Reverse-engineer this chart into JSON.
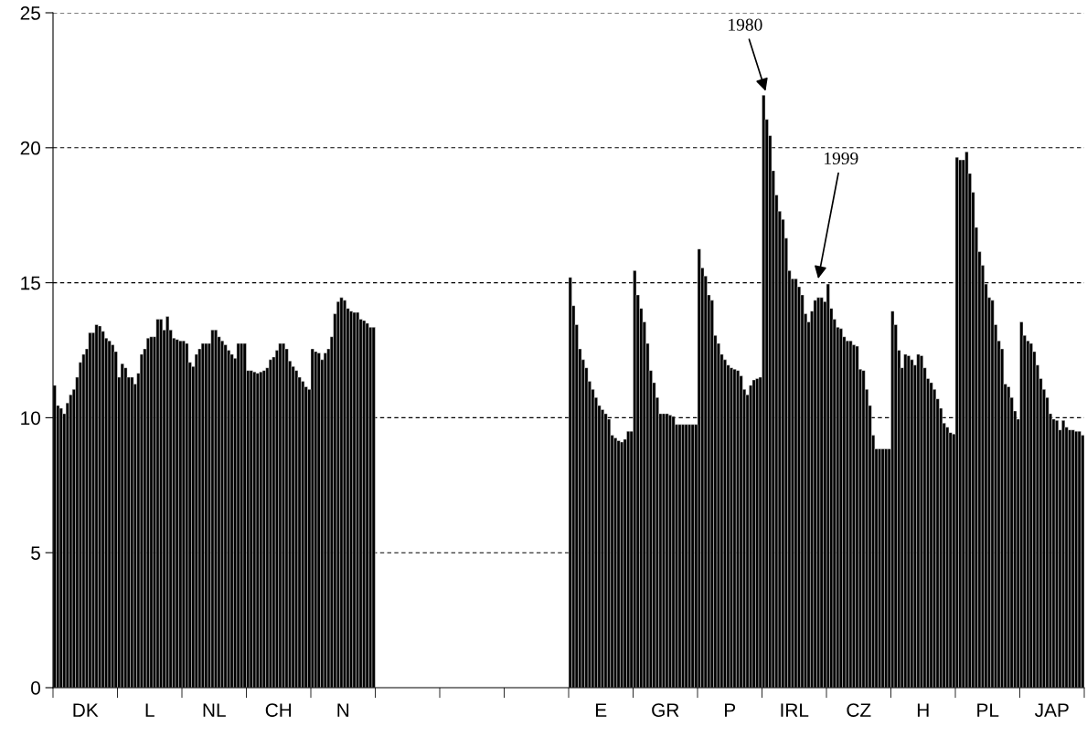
{
  "chart_data": {
    "type": "bar",
    "ylim": [
      0,
      25
    ],
    "yticks": [
      0,
      5,
      10,
      15,
      20,
      25
    ],
    "categories": [
      "DK",
      "L",
      "NL",
      "CH",
      "N",
      null,
      null,
      null,
      "E",
      "GR",
      "P",
      "IRL",
      "CZ",
      "H",
      "PL",
      "JAP"
    ],
    "grid": "y",
    "annotations": [
      "1980",
      "1999"
    ],
    "series": [
      {
        "color": "#000000",
        "values": [
          11.2,
          11.5,
          12.85,
          11.75,
          12.55,
          null,
          null,
          null,
          15.2,
          15.45,
          16.25,
          21.95,
          14.95,
          13.95,
          19.65,
          13.55
        ]
      },
      {
        "color": "#000000",
        "values": [
          10.45,
          12.0,
          12.75,
          11.75,
          12.45,
          null,
          null,
          null,
          14.15,
          14.55,
          15.55,
          21.05,
          14.05,
          13.45,
          19.55,
          13.05
        ]
      },
      {
        "color": "#000000",
        "values": [
          10.35,
          11.85,
          12.05,
          11.7,
          12.4,
          null,
          null,
          null,
          13.45,
          14.05,
          15.25,
          20.45,
          13.65,
          12.5,
          19.55,
          12.85
        ]
      },
      {
        "color": "#000000",
        "values": [
          10.15,
          11.5,
          11.9,
          11.65,
          12.15,
          null,
          null,
          null,
          12.55,
          13.55,
          14.55,
          19.15,
          13.35,
          11.85,
          19.85,
          12.75
        ]
      },
      {
        "color": "#000000",
        "values": [
          10.55,
          11.5,
          12.35,
          11.7,
          12.4,
          null,
          null,
          null,
          12.15,
          12.75,
          14.35,
          18.25,
          13.3,
          12.35,
          19.05,
          12.45
        ]
      },
      {
        "color": "#000000",
        "values": [
          10.85,
          11.25,
          12.55,
          11.75,
          12.55,
          null,
          null,
          null,
          11.85,
          11.75,
          13.05,
          17.65,
          13.0,
          12.3,
          18.35,
          11.95
        ]
      },
      {
        "color": "#000000",
        "values": [
          11.05,
          11.65,
          12.75,
          11.85,
          13.0,
          null,
          null,
          null,
          11.35,
          11.3,
          12.75,
          17.35,
          12.85,
          12.15,
          17.05,
          11.45
        ]
      },
      {
        "color": "#000000",
        "values": [
          11.5,
          12.35,
          12.75,
          12.15,
          13.85,
          null,
          null,
          null,
          11.05,
          10.75,
          12.35,
          16.65,
          12.85,
          11.95,
          16.15,
          11.05
        ]
      },
      {
        "color": "#000000",
        "values": [
          12.05,
          12.55,
          12.75,
          12.25,
          14.3,
          null,
          null,
          null,
          10.75,
          10.15,
          12.15,
          15.45,
          12.7,
          12.35,
          15.65,
          10.75
        ]
      },
      {
        "color": "#000000",
        "values": [
          12.35,
          12.95,
          13.25,
          12.5,
          14.45,
          null,
          null,
          null,
          10.45,
          10.15,
          11.95,
          15.15,
          12.65,
          12.3,
          14.95,
          10.15
        ]
      },
      {
        "color": "#000000",
        "values": [
          12.55,
          13.0,
          13.25,
          12.75,
          14.35,
          null,
          null,
          null,
          10.3,
          10.15,
          11.85,
          15.15,
          11.8,
          11.85,
          14.45,
          9.95
        ]
      },
      {
        "color": "#000000",
        "values": [
          13.15,
          13.0,
          13.0,
          12.75,
          14.05,
          null,
          null,
          null,
          10.15,
          10.1,
          11.8,
          14.85,
          11.75,
          11.45,
          14.35,
          9.9
        ]
      },
      {
        "color": "#000000",
        "values": [
          13.15,
          13.65,
          12.85,
          12.55,
          13.95,
          null,
          null,
          null,
          9.95,
          10.05,
          11.75,
          14.55,
          11.05,
          11.3,
          13.45,
          9.55
        ]
      },
      {
        "color": "#000000",
        "values": [
          13.45,
          13.65,
          12.7,
          12.1,
          13.9,
          null,
          null,
          null,
          9.35,
          9.75,
          11.55,
          13.85,
          10.45,
          11.05,
          12.85,
          9.9
        ]
      },
      {
        "color": "#000000",
        "values": [
          13.4,
          13.25,
          12.5,
          11.9,
          13.9,
          null,
          null,
          null,
          9.25,
          9.75,
          11.05,
          13.55,
          9.35,
          10.7,
          12.55,
          9.65
        ]
      },
      {
        "color": "#000000",
        "values": [
          13.2,
          13.75,
          12.35,
          11.75,
          13.65,
          null,
          null,
          null,
          9.15,
          9.75,
          10.85,
          13.95,
          8.85,
          10.35,
          11.25,
          9.55
        ]
      },
      {
        "color": "#000000",
        "values": [
          12.95,
          13.25,
          12.2,
          11.5,
          13.6,
          null,
          null,
          null,
          9.1,
          9.75,
          11.2,
          14.35,
          8.85,
          9.8,
          11.15,
          9.55
        ]
      },
      {
        "color": "#000000",
        "values": [
          12.85,
          12.95,
          12.75,
          11.35,
          13.5,
          null,
          null,
          null,
          9.2,
          9.75,
          11.4,
          14.45,
          8.85,
          9.65,
          10.75,
          9.5
        ]
      },
      {
        "color": "#000000",
        "values": [
          12.7,
          12.9,
          12.75,
          11.15,
          13.35,
          null,
          null,
          null,
          9.5,
          9.75,
          11.45,
          14.45,
          8.85,
          9.45,
          10.25,
          9.5
        ]
      },
      {
        "color": "#000000",
        "values": [
          12.45,
          12.85,
          12.75,
          11.05,
          13.35,
          null,
          null,
          null,
          9.5,
          9.75,
          11.5,
          14.3,
          8.85,
          9.4,
          9.95,
          9.35
        ]
      }
    ]
  }
}
